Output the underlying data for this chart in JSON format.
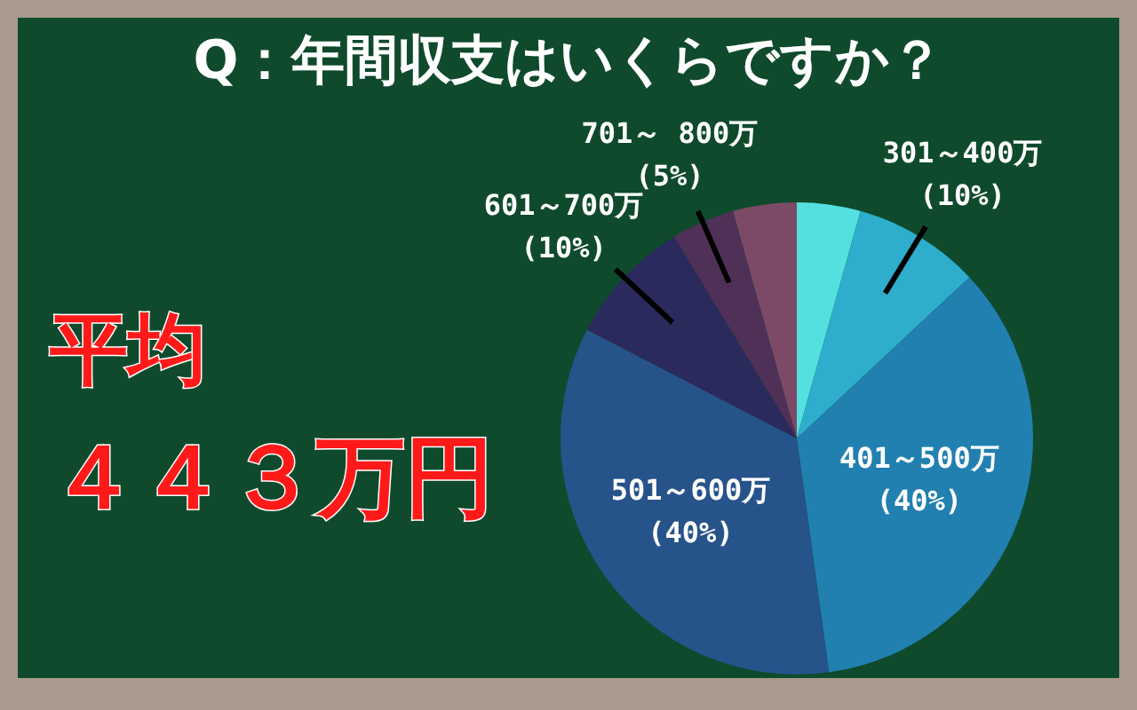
{
  "chart_data": {
    "type": "pie",
    "title": "Q：年間収支はいくらですか？",
    "categories": [
      null,
      "301～400万",
      "401～500万",
      "501～600万",
      "601～700万",
      "701～ 800万",
      null
    ],
    "values": [
      5,
      10,
      40,
      40,
      10,
      5,
      5
    ],
    "value_labels": [
      null,
      "(10%)",
      "(40%)",
      "(40%)",
      "(10%)",
      "(5%)",
      null
    ],
    "colors": [
      "#55e0e0",
      "#2eaecc",
      "#2180b0",
      "#26538a",
      "#2b2a5c",
      "#4f3057",
      "#7c4a66"
    ],
    "annotations": [
      "平均",
      "４４３万円"
    ]
  }
}
